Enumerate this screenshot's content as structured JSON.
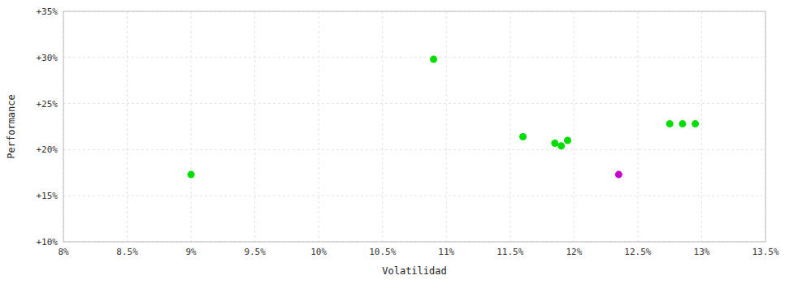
{
  "chart_data": {
    "type": "scatter",
    "xlabel": "Volatilidad",
    "ylabel": "Performance",
    "xlim": [
      0.08,
      0.135
    ],
    "ylim": [
      0.1,
      0.35
    ],
    "xticks": [
      {
        "value": 0.08,
        "label": "8%"
      },
      {
        "value": 0.085,
        "label": "8.5%"
      },
      {
        "value": 0.09,
        "label": "9%"
      },
      {
        "value": 0.095,
        "label": "9.5%"
      },
      {
        "value": 0.1,
        "label": "10%"
      },
      {
        "value": 0.105,
        "label": "10.5%"
      },
      {
        "value": 0.11,
        "label": "11%"
      },
      {
        "value": 0.115,
        "label": "11.5%"
      },
      {
        "value": 0.12,
        "label": "12%"
      },
      {
        "value": 0.125,
        "label": "12.5%"
      },
      {
        "value": 0.13,
        "label": "13%"
      },
      {
        "value": 0.135,
        "label": "13.5%"
      }
    ],
    "yticks": [
      {
        "value": 0.1,
        "label": "+10%"
      },
      {
        "value": 0.15,
        "label": "+15%"
      },
      {
        "value": 0.2,
        "label": "+20%"
      },
      {
        "value": 0.25,
        "label": "+25%"
      },
      {
        "value": 0.3,
        "label": "+30%"
      },
      {
        "value": 0.35,
        "label": "+35%"
      }
    ],
    "grid": true,
    "series": [
      {
        "color": "#00dd00",
        "x": [
          0.09,
          0.109,
          0.116,
          0.1185,
          0.119,
          0.1195,
          0.1275,
          0.1285,
          0.1295
        ],
        "values": [
          0.173,
          0.298,
          0.214,
          0.207,
          0.204,
          0.21,
          0.228,
          0.228,
          0.228
        ]
      },
      {
        "color": "#cc00cc",
        "x": [
          0.1235
        ],
        "values": [
          0.173
        ]
      }
    ]
  }
}
